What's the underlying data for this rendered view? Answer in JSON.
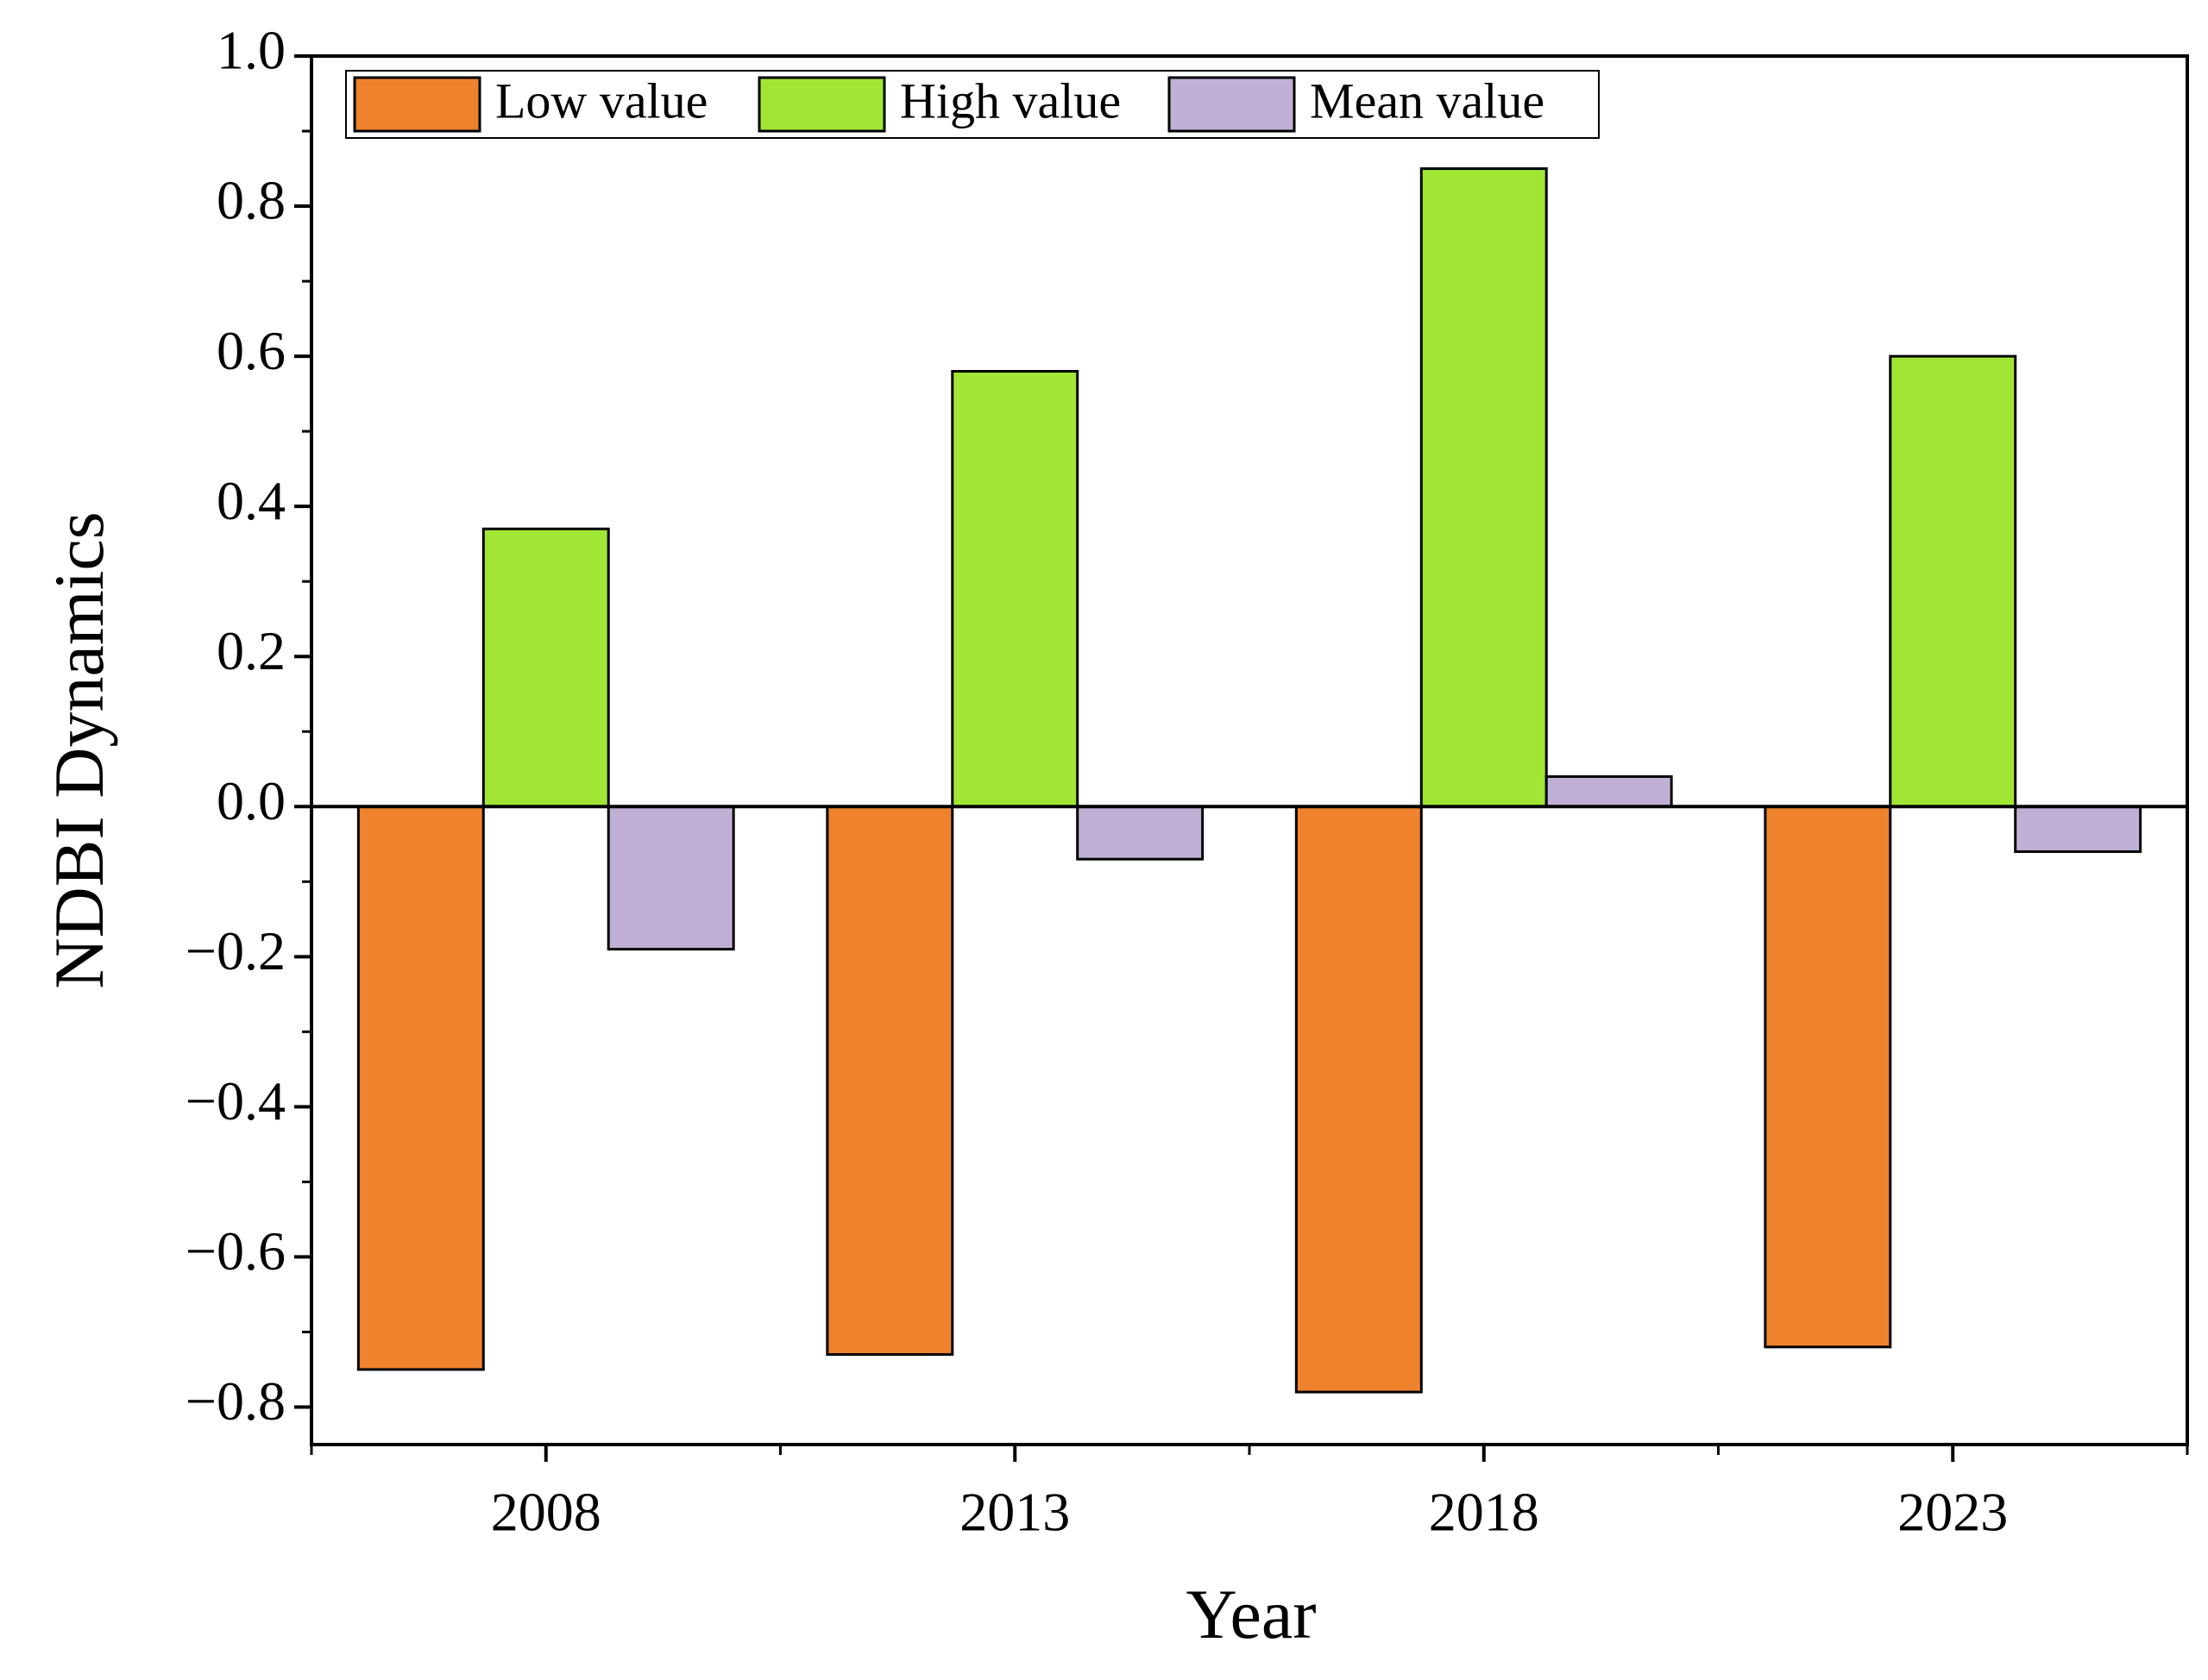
{
  "chart_data": {
    "type": "bar",
    "x_label": "Year",
    "y_label": "NDBI Dynamics",
    "categories": [
      "2008",
      "2013",
      "2018",
      "2023"
    ],
    "series": [
      {
        "name": "Low value",
        "color": "#ee822d",
        "values": [
          -0.75,
          -0.73,
          -0.78,
          -0.72
        ]
      },
      {
        "name": "High value",
        "color": "#a1e634",
        "values": [
          0.37,
          0.58,
          0.85,
          0.6
        ]
      },
      {
        "name": "Mean value",
        "color": "#c1b0d6",
        "values": [
          -0.19,
          -0.07,
          0.04,
          -0.06
        ]
      }
    ],
    "ylim": [
      -0.85,
      1.0
    ],
    "yticks": [
      {
        "value": -0.8,
        "label": "−0.8"
      },
      {
        "value": -0.6,
        "label": "−0.6"
      },
      {
        "value": -0.4,
        "label": "−0.4"
      },
      {
        "value": -0.2,
        "label": "−0.2"
      },
      {
        "value": 0,
        "label": "0.0"
      },
      0.2,
      0.4,
      0.6,
      0.8,
      {
        "value": 1,
        "label": "1.0"
      }
    ],
    "legend": "upper left"
  }
}
